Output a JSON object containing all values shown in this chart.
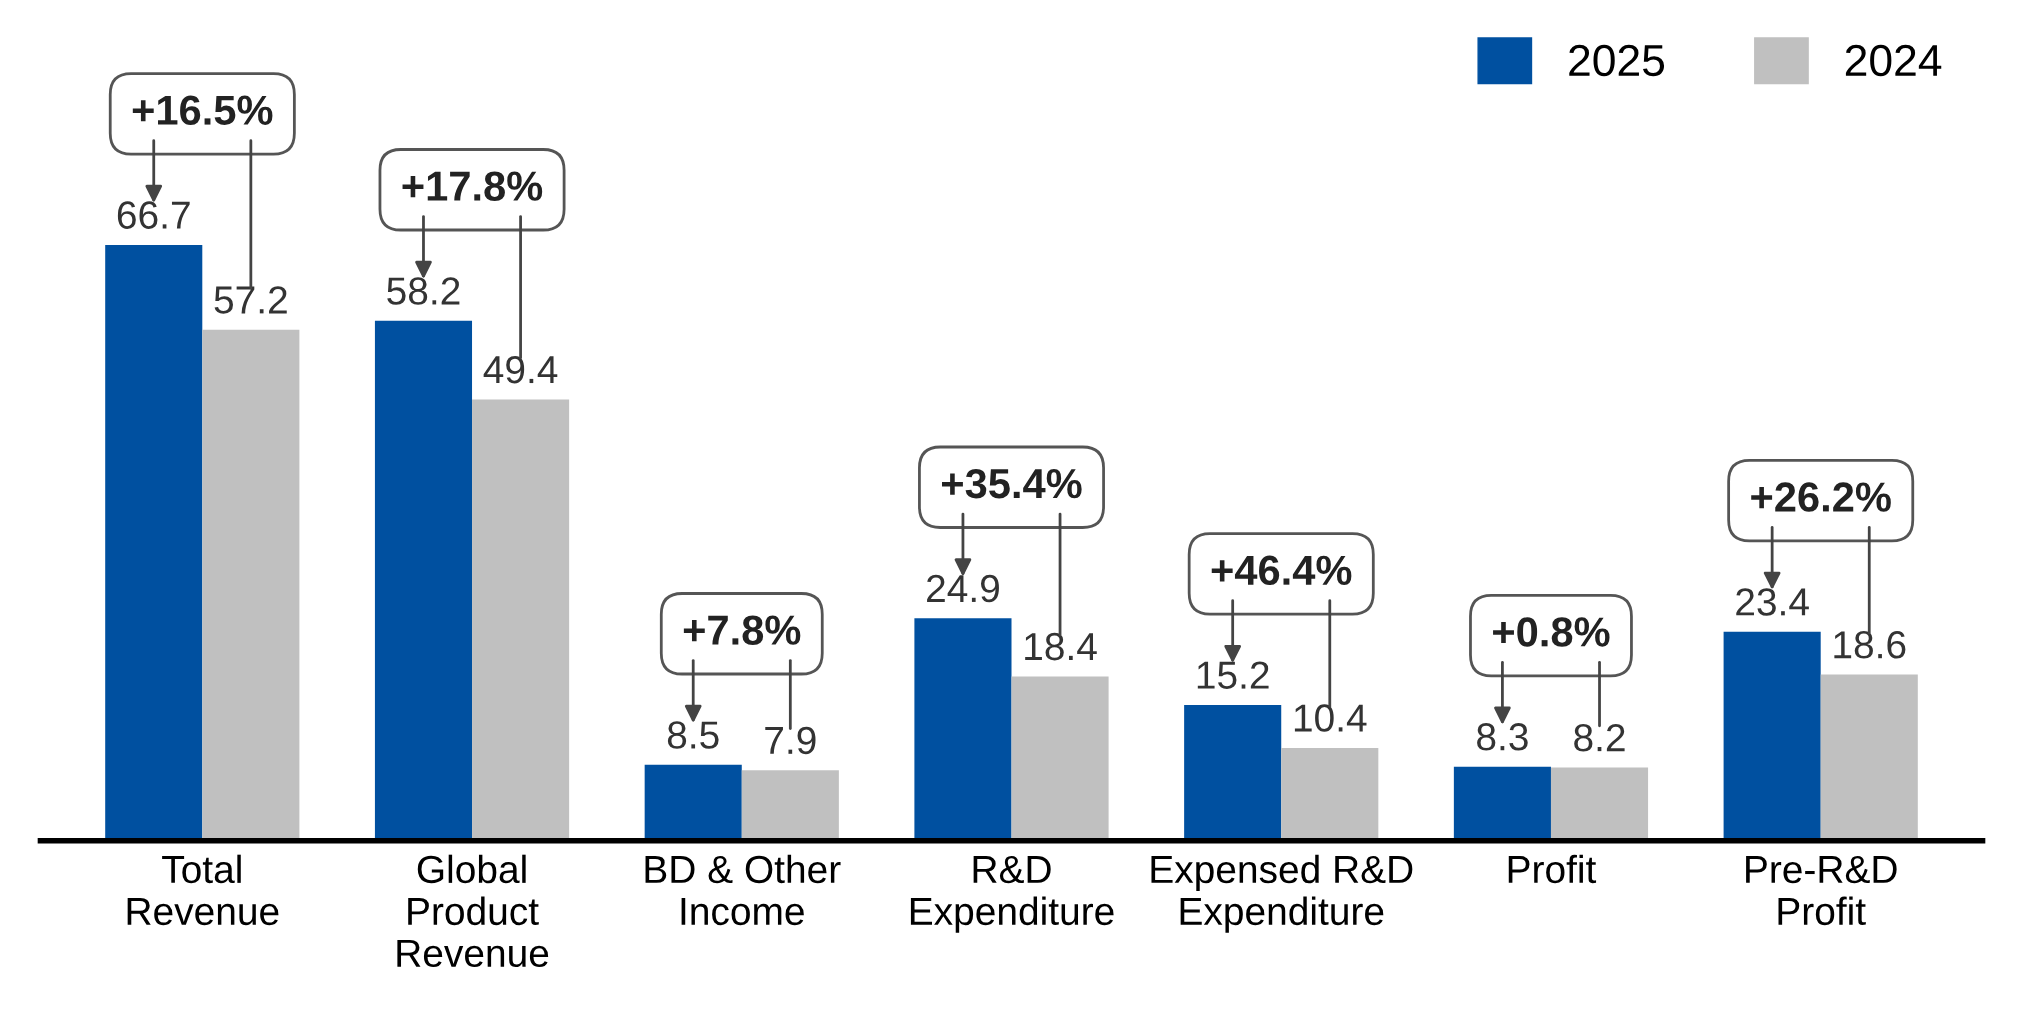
{
  "chart_data": {
    "type": "bar",
    "categories": [
      "Total\nRevenue",
      "Global\nProduct\nRevenue",
      "BD & Other\nIncome",
      "R&D\nExpenditure",
      "Expensed R&D\nExpenditure",
      "Profit",
      "Pre-R&D\nProfit"
    ],
    "series": [
      {
        "name": "2025",
        "color": "#0050a0",
        "values": [
          66.7,
          58.2,
          8.5,
          24.9,
          15.2,
          8.3,
          23.4
        ]
      },
      {
        "name": "2024",
        "color": "#c0c0c0",
        "values": [
          57.2,
          49.4,
          7.9,
          18.4,
          10.4,
          8.2,
          18.6
        ]
      }
    ],
    "data_labels": true,
    "legend": "top right",
    "grid": false,
    "annotations": [
      {
        "text": "+16.5%",
        "x": "Total\nRevenue",
        "y": 66.7
      },
      {
        "text": "+17.8%",
        "x": "Global\nProduct\nRevenue",
        "y": 58.2
      },
      {
        "text": "+7.8%",
        "x": "BD & Other\nIncome",
        "y": 8.5
      },
      {
        "text": "+35.4%",
        "x": "R&D\nExpenditure",
        "y": 24.9
      },
      {
        "text": "+46.4%",
        "x": "Expensed R&D\nExpenditure",
        "y": 15.2
      },
      {
        "text": "+0.8%",
        "x": "Profit",
        "y": 8.3
      },
      {
        "text": "+26.2%",
        "x": "Pre-R&D\nProfit",
        "y": 23.4
      }
    ]
  }
}
